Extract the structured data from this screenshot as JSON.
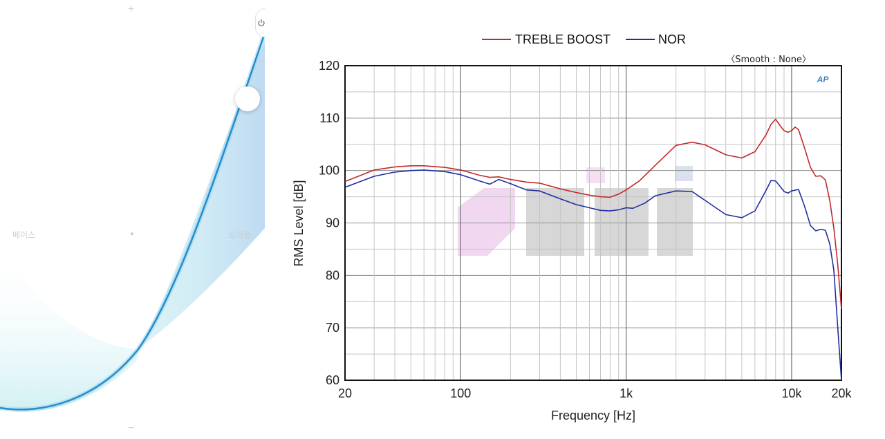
{
  "eq_panel": {
    "bass_label": "베이스",
    "treble_label": "트레블",
    "plus_symbol": "+",
    "minus_symbol": "−",
    "power_icon": "power-icon",
    "level": 0.78
  },
  "chart_data": {
    "type": "line",
    "xlabel": "Frequency [Hz]",
    "ylabel": "RMS Level [dB]",
    "xscale": "log",
    "xlim": [
      20,
      20000
    ],
    "ylim": [
      60,
      120
    ],
    "xticks": [
      {
        "value": 20,
        "label": "20"
      },
      {
        "value": 100,
        "label": "100"
      },
      {
        "value": 1000,
        "label": "1k"
      },
      {
        "value": 10000,
        "label": "10k"
      },
      {
        "value": 20000,
        "label": "20k"
      }
    ],
    "yticks": [
      120,
      110,
      100,
      90,
      80,
      70,
      60
    ],
    "grid": true,
    "legend_position": "top",
    "annotation": "〈Smooth : None〉",
    "watermark_logo": "AP",
    "series": [
      {
        "name": "TREBLE BOOST",
        "color": "#c0292b",
        "points": [
          [
            20,
            97.9
          ],
          [
            30,
            100.1
          ],
          [
            40,
            100.7
          ],
          [
            50,
            100.9
          ],
          [
            60,
            100.9
          ],
          [
            80,
            100.6
          ],
          [
            100,
            100.1
          ],
          [
            130,
            99.1
          ],
          [
            150,
            98.7
          ],
          [
            170,
            98.8
          ],
          [
            200,
            98.3
          ],
          [
            250,
            97.8
          ],
          [
            300,
            97.6
          ],
          [
            400,
            96.5
          ],
          [
            500,
            95.8
          ],
          [
            600,
            95.3
          ],
          [
            700,
            95.0
          ],
          [
            800,
            94.9
          ],
          [
            900,
            95.5
          ],
          [
            1000,
            96.3
          ],
          [
            1200,
            98.0
          ],
          [
            1500,
            101.0
          ],
          [
            2000,
            104.8
          ],
          [
            2500,
            105.4
          ],
          [
            3000,
            104.9
          ],
          [
            4000,
            103.0
          ],
          [
            5000,
            102.4
          ],
          [
            6000,
            103.6
          ],
          [
            7000,
            106.8
          ],
          [
            7500,
            108.8
          ],
          [
            8000,
            109.8
          ],
          [
            8500,
            108.6
          ],
          [
            9000,
            107.6
          ],
          [
            9500,
            107.3
          ],
          [
            10000,
            107.6
          ],
          [
            10500,
            108.3
          ],
          [
            11000,
            107.8
          ],
          [
            12000,
            104.2
          ],
          [
            13000,
            100.6
          ],
          [
            14000,
            98.9
          ],
          [
            15000,
            99.0
          ],
          [
            16000,
            98.2
          ],
          [
            17000,
            94.3
          ],
          [
            18000,
            89.0
          ],
          [
            19000,
            82.0
          ],
          [
            20000,
            73.6
          ]
        ]
      },
      {
        "name": "NOR",
        "color": "#1f2f9e",
        "points": [
          [
            20,
            96.8
          ],
          [
            30,
            98.9
          ],
          [
            40,
            99.7
          ],
          [
            50,
            100.0
          ],
          [
            60,
            100.1
          ],
          [
            80,
            99.8
          ],
          [
            100,
            99.2
          ],
          [
            130,
            98.0
          ],
          [
            150,
            97.4
          ],
          [
            170,
            98.3
          ],
          [
            200,
            97.5
          ],
          [
            250,
            96.3
          ],
          [
            300,
            96.1
          ],
          [
            400,
            94.6
          ],
          [
            500,
            93.5
          ],
          [
            600,
            92.9
          ],
          [
            700,
            92.4
          ],
          [
            800,
            92.3
          ],
          [
            900,
            92.5
          ],
          [
            1000,
            92.9
          ],
          [
            1100,
            92.8
          ],
          [
            1300,
            93.8
          ],
          [
            1500,
            95.2
          ],
          [
            2000,
            96.1
          ],
          [
            2500,
            96.0
          ],
          [
            3000,
            94.3
          ],
          [
            4000,
            91.6
          ],
          [
            5000,
            91.0
          ],
          [
            6000,
            92.3
          ],
          [
            7000,
            96.2
          ],
          [
            7500,
            98.1
          ],
          [
            8000,
            98.0
          ],
          [
            8500,
            97.0
          ],
          [
            9000,
            96.0
          ],
          [
            9500,
            95.7
          ],
          [
            10000,
            96.1
          ],
          [
            11000,
            96.4
          ],
          [
            12000,
            93.1
          ],
          [
            13000,
            89.5
          ],
          [
            14000,
            88.5
          ],
          [
            15000,
            88.8
          ],
          [
            16000,
            88.6
          ],
          [
            17000,
            86.0
          ],
          [
            18000,
            81.0
          ],
          [
            19000,
            70.0
          ],
          [
            20000,
            60.0
          ]
        ]
      }
    ]
  }
}
